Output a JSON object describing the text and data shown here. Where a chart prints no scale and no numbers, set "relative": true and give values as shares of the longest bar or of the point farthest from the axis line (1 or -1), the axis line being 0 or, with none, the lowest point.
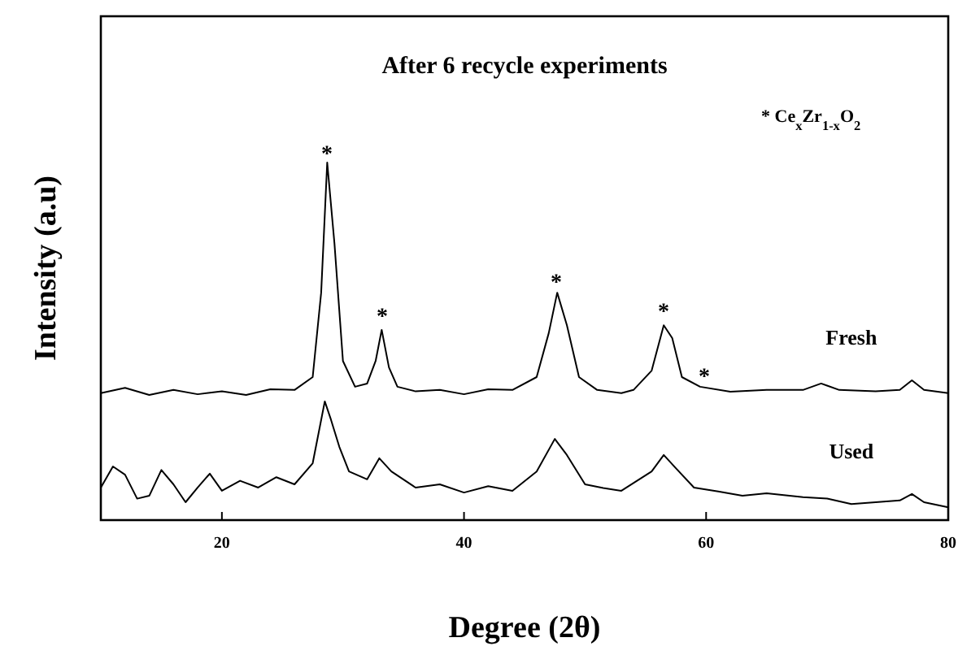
{
  "chart_data": {
    "type": "line",
    "relative": true,
    "title": "After 6 recycle experiments",
    "xlabel": "Degree (2θ)",
    "ylabel": "Intensity (a.u)",
    "xlim": [
      10,
      80
    ],
    "xticks": [
      20,
      40,
      60,
      80
    ],
    "tick_labels": "x",
    "grid": false,
    "marker": "none",
    "line_style": "solid",
    "series": [
      {
        "name": "Fresh",
        "color": "#000000",
        "x": [
          10,
          12,
          14,
          16,
          18,
          20,
          22,
          24,
          26,
          27.5,
          28.2,
          28.7,
          29.3,
          30,
          31,
          32,
          32.7,
          33.2,
          33.8,
          34.5,
          36,
          38,
          40,
          42,
          44,
          46,
          47,
          47.7,
          48.5,
          49.5,
          51,
          53,
          54,
          55.5,
          56.5,
          57.2,
          58,
          59.5,
          62,
          65,
          68,
          69.5,
          71,
          74,
          76,
          77,
          78,
          80
        ],
        "values": [
          0.355,
          0.37,
          0.35,
          0.364,
          0.352,
          0.36,
          0.35,
          0.366,
          0.364,
          0.4,
          0.636,
          1,
          0.773,
          0.445,
          0.373,
          0.382,
          0.445,
          0.532,
          0.427,
          0.373,
          0.36,
          0.364,
          0.352,
          0.366,
          0.364,
          0.4,
          0.523,
          0.636,
          0.545,
          0.4,
          0.364,
          0.355,
          0.364,
          0.418,
          0.545,
          0.509,
          0.4,
          0.373,
          0.359,
          0.364,
          0.364,
          0.382,
          0.364,
          0.36,
          0.364,
          0.391,
          0.364,
          0.355
        ]
      },
      {
        "name": "Used",
        "color": "#000000",
        "x": [
          10,
          11,
          12,
          13,
          14,
          15,
          16,
          17,
          18,
          19,
          20,
          21.5,
          23,
          24.5,
          26,
          27.5,
          28.5,
          29,
          29.7,
          30.5,
          32,
          33,
          34,
          36,
          38,
          40,
          42,
          44,
          46,
          47.5,
          48.5,
          50,
          51.5,
          53,
          55.5,
          56.5,
          57.5,
          59,
          61,
          63,
          65,
          68,
          70,
          72,
          74,
          76,
          77,
          78,
          80
        ],
        "values": [
          0.091,
          0.15,
          0.127,
          0.06,
          0.068,
          0.14,
          0.1,
          0.05,
          0.091,
          0.13,
          0.082,
          0.11,
          0.091,
          0.12,
          0.1,
          0.159,
          0.332,
          0.282,
          0.205,
          0.136,
          0.114,
          0.173,
          0.136,
          0.091,
          0.1,
          0.077,
          0.095,
          0.082,
          0.136,
          0.227,
          0.182,
          0.1,
          0.09,
          0.082,
          0.136,
          0.182,
          0.145,
          0.091,
          0.08,
          0.068,
          0.075,
          0.064,
          0.06,
          0.045,
          0.05,
          0.055,
          0.073,
          0.05,
          0.036
        ]
      }
    ],
    "annotations": [
      "*",
      "*",
      "*",
      "*",
      "*",
      "* Ce$_{x}$Zr$_{1-x}$O$_{2}$"
    ]
  }
}
